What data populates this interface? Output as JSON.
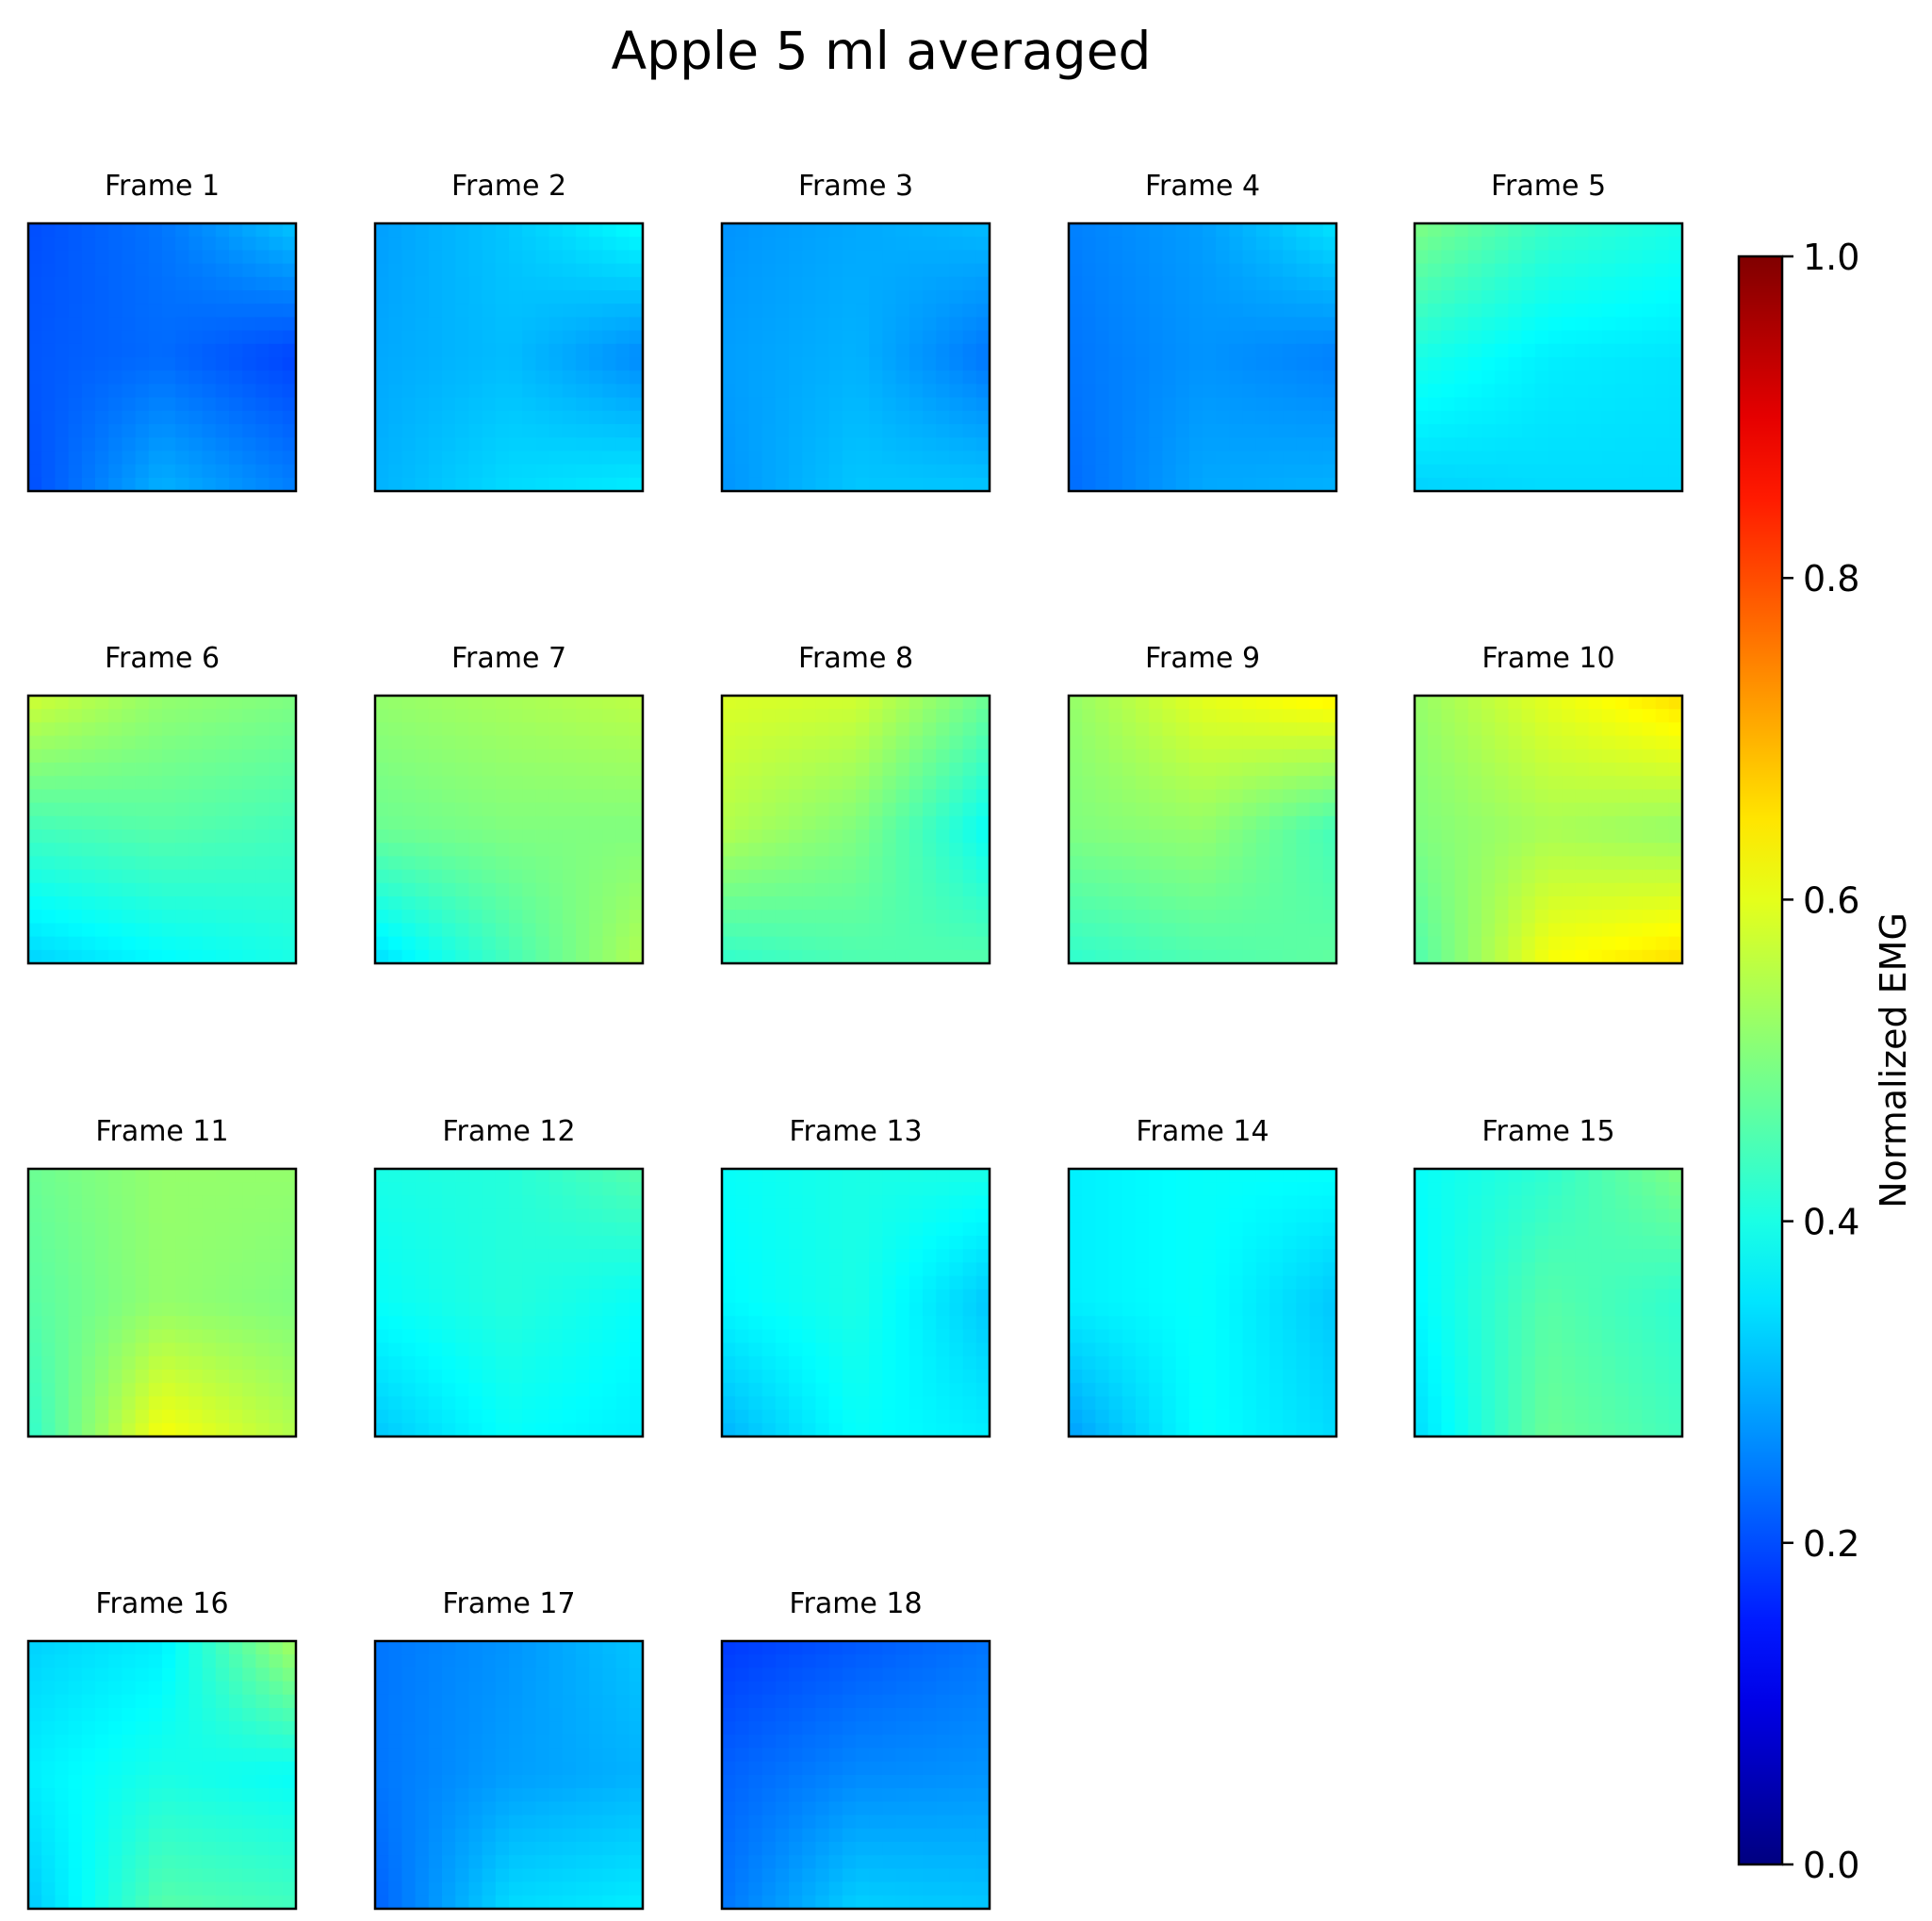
{
  "chart_data": {
    "type": "heatmap",
    "title": "Apple 5 ml averaged",
    "colormap": "jet",
    "colorbar": {
      "label": "Normalized EMG",
      "range": [
        0.0,
        1.0
      ],
      "ticks": [
        "0.0",
        "0.2",
        "0.4",
        "0.6",
        "0.8",
        "1.0"
      ],
      "tick_values": [
        0.0,
        0.2,
        0.4,
        0.6,
        0.8,
        1.0
      ]
    },
    "grid": false,
    "frame_layout": {
      "columns": 5,
      "rows": 4
    },
    "value_grid_note_keys": [
      "grid is 3x3 estimated values: rows top-to-bottom, cols left-to-right"
    ],
    "frames": [
      {
        "label": "Frame 1",
        "values": [
          [
            0.2,
            0.24,
            0.32
          ],
          [
            0.21,
            0.23,
            0.19
          ],
          [
            0.2,
            0.3,
            0.25
          ]
        ]
      },
      {
        "label": "Frame 2",
        "values": [
          [
            0.28,
            0.32,
            0.38
          ],
          [
            0.29,
            0.31,
            0.26
          ],
          [
            0.3,
            0.34,
            0.36
          ]
        ]
      },
      {
        "label": "Frame 3",
        "values": [
          [
            0.27,
            0.29,
            0.31
          ],
          [
            0.28,
            0.3,
            0.24
          ],
          [
            0.27,
            0.32,
            0.32
          ]
        ]
      },
      {
        "label": "Frame 4",
        "values": [
          [
            0.25,
            0.28,
            0.35
          ],
          [
            0.24,
            0.27,
            0.25
          ],
          [
            0.23,
            0.29,
            0.3
          ]
        ]
      },
      {
        "label": "Frame 5",
        "values": [
          [
            0.5,
            0.43,
            0.4
          ],
          [
            0.4,
            0.36,
            0.35
          ],
          [
            0.33,
            0.34,
            0.34
          ]
        ]
      },
      {
        "label": "Frame 6",
        "values": [
          [
            0.58,
            0.52,
            0.5
          ],
          [
            0.44,
            0.46,
            0.44
          ],
          [
            0.33,
            0.37,
            0.4
          ]
        ]
      },
      {
        "label": "Frame 7",
        "values": [
          [
            0.52,
            0.54,
            0.56
          ],
          [
            0.48,
            0.5,
            0.5
          ],
          [
            0.34,
            0.44,
            0.55
          ]
        ]
      },
      {
        "label": "Frame 8",
        "values": [
          [
            0.59,
            0.58,
            0.48
          ],
          [
            0.55,
            0.5,
            0.38
          ],
          [
            0.42,
            0.45,
            0.46
          ]
        ]
      },
      {
        "label": "Frame 9",
        "values": [
          [
            0.52,
            0.6,
            0.64
          ],
          [
            0.5,
            0.52,
            0.44
          ],
          [
            0.42,
            0.45,
            0.47
          ]
        ]
      },
      {
        "label": "Frame 10",
        "values": [
          [
            0.52,
            0.6,
            0.66
          ],
          [
            0.5,
            0.54,
            0.52
          ],
          [
            0.45,
            0.62,
            0.66
          ]
        ]
      },
      {
        "label": "Frame 11",
        "values": [
          [
            0.48,
            0.52,
            0.52
          ],
          [
            0.46,
            0.52,
            0.5
          ],
          [
            0.42,
            0.62,
            0.55
          ]
        ]
      },
      {
        "label": "Frame 12",
        "values": [
          [
            0.4,
            0.41,
            0.46
          ],
          [
            0.38,
            0.41,
            0.38
          ],
          [
            0.32,
            0.38,
            0.36
          ]
        ]
      },
      {
        "label": "Frame 13",
        "values": [
          [
            0.38,
            0.4,
            0.4
          ],
          [
            0.37,
            0.4,
            0.32
          ],
          [
            0.3,
            0.38,
            0.36
          ]
        ]
      },
      {
        "label": "Frame 14",
        "values": [
          [
            0.36,
            0.38,
            0.38
          ],
          [
            0.36,
            0.38,
            0.32
          ],
          [
            0.28,
            0.38,
            0.34
          ]
        ]
      },
      {
        "label": "Frame 15",
        "values": [
          [
            0.38,
            0.42,
            0.5
          ],
          [
            0.37,
            0.46,
            0.42
          ],
          [
            0.34,
            0.48,
            0.44
          ]
        ]
      },
      {
        "label": "Frame 16",
        "values": [
          [
            0.33,
            0.36,
            0.54
          ],
          [
            0.36,
            0.4,
            0.38
          ],
          [
            0.32,
            0.46,
            0.44
          ]
        ]
      },
      {
        "label": "Frame 17",
        "values": [
          [
            0.24,
            0.27,
            0.32
          ],
          [
            0.24,
            0.28,
            0.3
          ],
          [
            0.22,
            0.34,
            0.36
          ]
        ]
      },
      {
        "label": "Frame 18",
        "values": [
          [
            0.18,
            0.21,
            0.24
          ],
          [
            0.22,
            0.26,
            0.27
          ],
          [
            0.24,
            0.33,
            0.32
          ]
        ]
      }
    ]
  }
}
